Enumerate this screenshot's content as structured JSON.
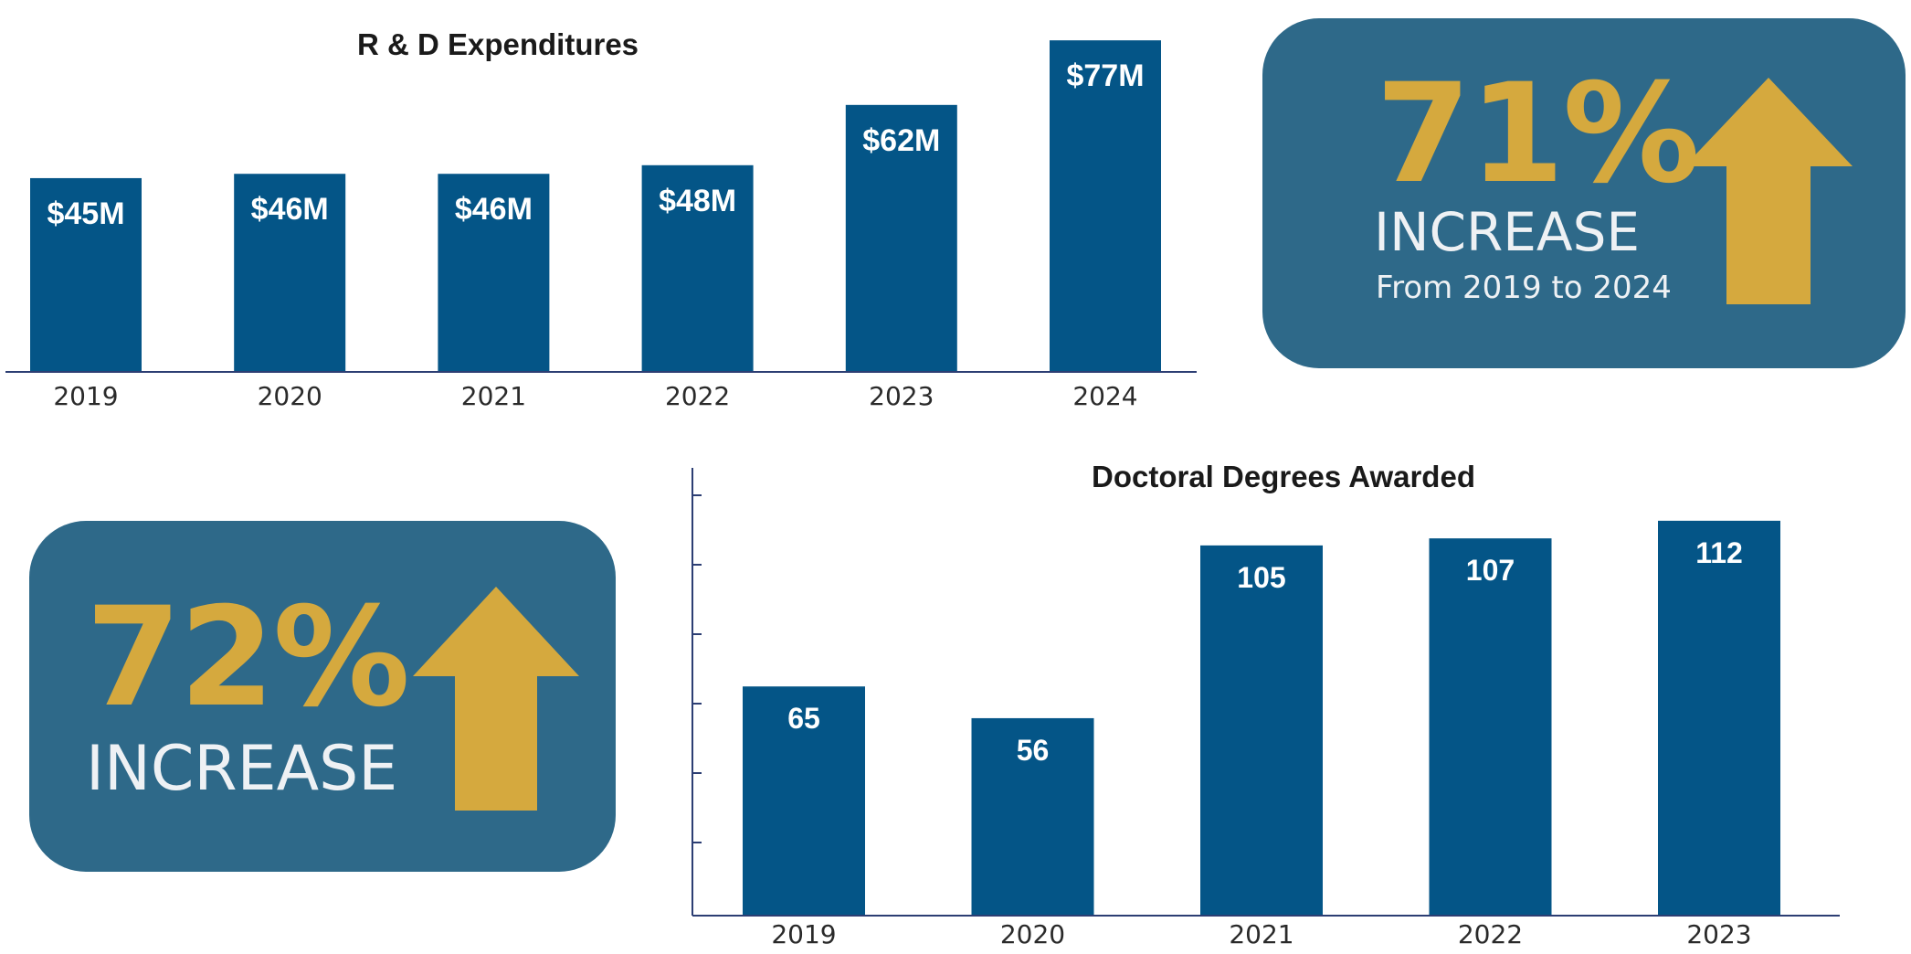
{
  "chart_data": [
    {
      "type": "bar",
      "title": "R & D Expenditures",
      "categories": [
        "2019",
        "2020",
        "2021",
        "2022",
        "2023",
        "2024"
      ],
      "values": [
        45,
        46,
        46,
        48,
        62,
        77
      ],
      "data_labels": [
        "$45M",
        "$46M",
        "$46M",
        "$48M",
        "$62M",
        "$77M"
      ],
      "ylim": [
        0,
        80
      ],
      "grid": false,
      "bar_color": "#045587"
    },
    {
      "type": "bar",
      "title": "Doctoral Degrees Awarded",
      "categories": [
        "2019",
        "2020",
        "2021",
        "2022",
        "2023"
      ],
      "values": [
        65,
        56,
        105,
        107,
        112
      ],
      "data_labels": [
        "65",
        "56",
        "105",
        "107",
        "112"
      ],
      "ylim": [
        0,
        127
      ],
      "grid": false,
      "bar_color": "#045587"
    }
  ],
  "stats": {
    "rd": {
      "percent": "71%",
      "label": "INCREASE",
      "sublabel": "From 2019 to 2024",
      "icon": "arrow-up-icon"
    },
    "doctoral": {
      "percent": "72%",
      "label": "INCREASE",
      "icon": "arrow-up-icon"
    }
  },
  "colors": {
    "bar": "#045587",
    "stat_box": "#2e6989",
    "accent": "#d5a93e",
    "stat_text": "#eef1f4"
  }
}
